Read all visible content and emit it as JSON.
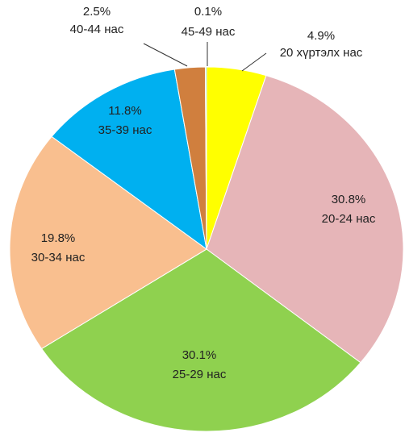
{
  "chart_data": {
    "type": "pie",
    "categories": [
      "20 хүртэлх нас",
      "20-24 нас",
      "25-29 нас",
      "30-34 нас",
      "35-39 нас",
      "40-44 нас",
      "45-49 нас"
    ],
    "values": [
      4.9,
      30.8,
      30.1,
      19.8,
      11.8,
      2.5,
      0.1
    ],
    "value_labels": [
      "4.9%",
      "30.8%",
      "30.1%",
      "19.8%",
      "11.8%",
      "2.5%",
      "0.1%"
    ],
    "colors": [
      "#ffff00",
      "#e6b5b8",
      "#8fd14f",
      "#f9bf8f",
      "#00b0f0",
      "#d07f3e",
      "#66cccc"
    ]
  }
}
